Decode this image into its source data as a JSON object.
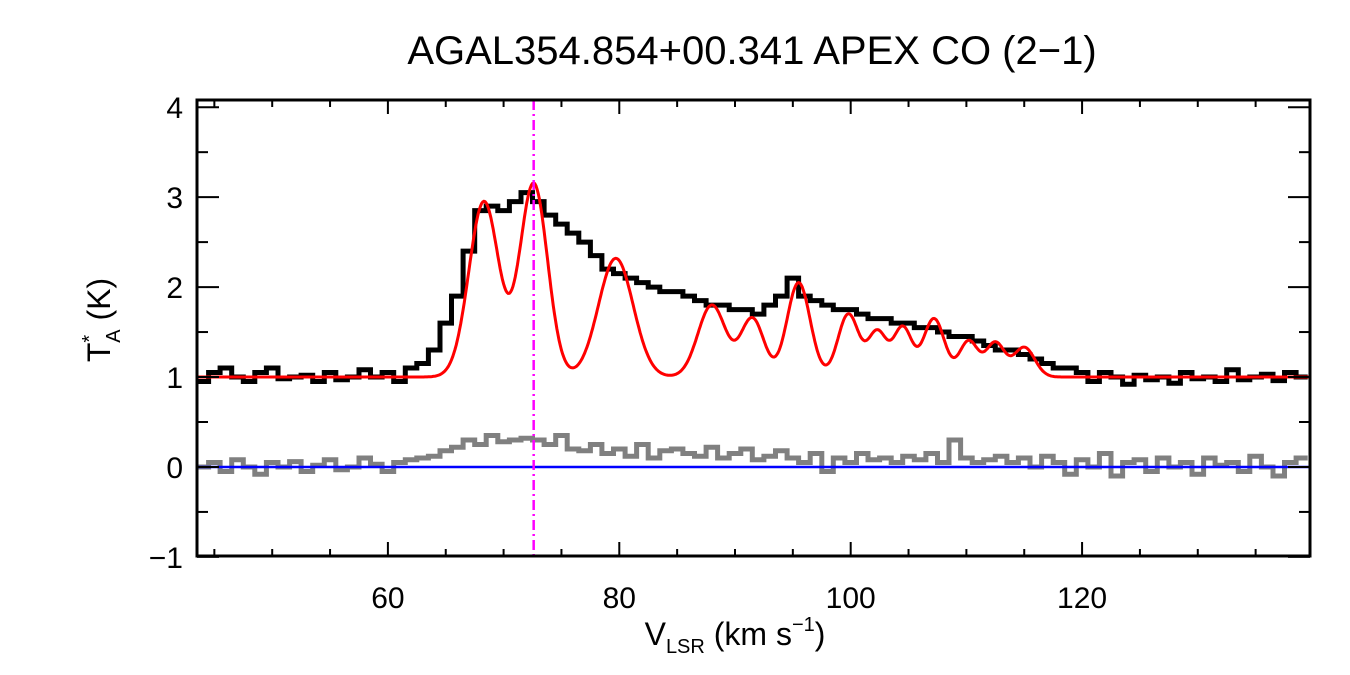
{
  "chart_data": {
    "type": "line",
    "title": "AGAL354.854+00.341   APEX CO (2−1)",
    "xlabel": {
      "main": "V",
      "sub": "LSR",
      "rest": " (km s",
      "sup": "−1",
      "end": ")"
    },
    "ylabel": {
      "main": "T",
      "sup": "*",
      "sub": "A",
      "rest": " (K)"
    },
    "xlim": [
      43.5,
      139.7
    ],
    "ylim": [
      -0.99,
      4.08
    ],
    "xticks": [
      60,
      80,
      100,
      120
    ],
    "xtick_labels": [
      "60",
      "80",
      "100",
      "120"
    ],
    "x_minor_step": 5,
    "yticks": [
      -1,
      0,
      1,
      2,
      3,
      4
    ],
    "ytick_labels": [
      "−1",
      "0",
      "1",
      "2",
      "3",
      "4"
    ],
    "y_minor_step": 0.5,
    "grid": false,
    "colors": {
      "observed": "#000000",
      "fit": "#ff0000",
      "residual": "#808080",
      "zero_line": "#0000ff",
      "velocity_marker": "#ff00ff"
    },
    "velocity_marker": 72.6,
    "observed": {
      "x_start": 44,
      "x_step": 1,
      "values": [
        0.95,
        1.05,
        1.1,
        1.0,
        0.95,
        1.05,
        1.1,
        0.98,
        1.0,
        1.02,
        0.95,
        1.05,
        0.97,
        1.0,
        1.08,
        1.0,
        1.05,
        0.95,
        1.1,
        1.15,
        1.3,
        1.6,
        1.9,
        2.4,
        2.85,
        2.9,
        2.85,
        2.95,
        3.05,
        2.95,
        2.8,
        2.7,
        2.6,
        2.5,
        2.35,
        2.2,
        2.15,
        2.1,
        2.05,
        2.0,
        1.95,
        1.95,
        1.9,
        1.85,
        1.8,
        1.8,
        1.75,
        1.75,
        1.7,
        1.8,
        1.9,
        2.1,
        1.9,
        1.85,
        1.8,
        1.75,
        1.75,
        1.7,
        1.65,
        1.65,
        1.6,
        1.6,
        1.55,
        1.55,
        1.5,
        1.45,
        1.45,
        1.4,
        1.35,
        1.3,
        1.3,
        1.25,
        1.2,
        1.15,
        1.1,
        1.1,
        1.05,
        0.95,
        1.05,
        1.0,
        0.92,
        1.02,
        0.97,
        1.0,
        0.93,
        1.05,
        0.98,
        1.0,
        0.95,
        1.08,
        0.97,
        1.0,
        1.03,
        0.96,
        1.05,
        1.0
      ]
    },
    "residual": {
      "x_start": 44,
      "x_step": 1,
      "values": [
        0.0,
        0.05,
        -0.05,
        0.08,
        0.0,
        -0.08,
        0.05,
        0.0,
        0.06,
        -0.05,
        0.02,
        0.08,
        -0.03,
        0.0,
        0.1,
        0.03,
        -0.05,
        0.05,
        0.08,
        0.1,
        0.12,
        0.18,
        0.22,
        0.3,
        0.25,
        0.35,
        0.28,
        0.3,
        0.32,
        0.3,
        0.25,
        0.35,
        0.2,
        0.18,
        0.25,
        0.15,
        0.2,
        0.12,
        0.25,
        0.1,
        0.18,
        0.2,
        0.15,
        0.12,
        0.22,
        0.1,
        0.15,
        0.2,
        0.08,
        0.12,
        0.18,
        0.1,
        0.05,
        0.15,
        -0.05,
        0.1,
        0.05,
        0.15,
        0.08,
        0.1,
        0.05,
        0.12,
        0.08,
        0.15,
        0.05,
        0.3,
        0.1,
        0.05,
        0.08,
        0.12,
        0.05,
        0.1,
        0.0,
        0.12,
        0.05,
        -0.08,
        0.08,
        0.0,
        0.15,
        -0.1,
        0.05,
        0.08,
        -0.05,
        0.1,
        0.0,
        0.05,
        -0.08,
        0.1,
        0.02,
        0.05,
        -0.05,
        0.12,
        0.0,
        -0.1,
        0.05,
        0.1
      ]
    },
    "fit": {
      "baseline": 1.0,
      "components": [
        {
          "center": 68.3,
          "amplitude": 1.95,
          "sigma": 1.3
        },
        {
          "center": 72.6,
          "amplitude": 2.15,
          "sigma": 1.2
        },
        {
          "center": 79.7,
          "amplitude": 1.32,
          "sigma": 1.5
        },
        {
          "center": 88.0,
          "amplitude": 0.8,
          "sigma": 1.2
        },
        {
          "center": 91.5,
          "amplitude": 0.65,
          "sigma": 1.0
        },
        {
          "center": 95.5,
          "amplitude": 1.05,
          "sigma": 1.0
        },
        {
          "center": 99.8,
          "amplitude": 0.7,
          "sigma": 0.9
        },
        {
          "center": 102.3,
          "amplitude": 0.5,
          "sigma": 0.8
        },
        {
          "center": 104.5,
          "amplitude": 0.55,
          "sigma": 0.8
        },
        {
          "center": 107.2,
          "amplitude": 0.65,
          "sigma": 0.9
        },
        {
          "center": 110.2,
          "amplitude": 0.4,
          "sigma": 0.8
        },
        {
          "center": 112.5,
          "amplitude": 0.38,
          "sigma": 0.8
        },
        {
          "center": 115.0,
          "amplitude": 0.33,
          "sigma": 0.9
        }
      ]
    },
    "zero_line": 0
  }
}
